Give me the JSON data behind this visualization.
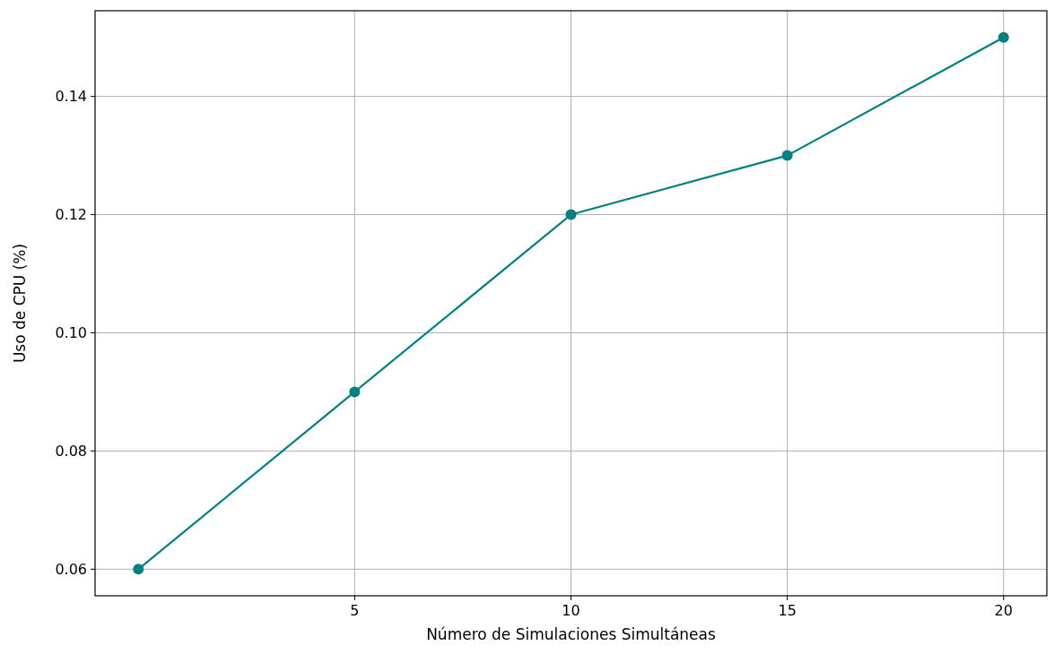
{
  "chart_data": {
    "type": "line",
    "xlabel": "Número de Simulaciones Simultáneas",
    "ylabel": "Uso de CPU (%)",
    "x": [
      0,
      5,
      10,
      15,
      20
    ],
    "series": [
      {
        "color": "#008080",
        "values": [
          0.06,
          0.09,
          0.12,
          0.13,
          0.15
        ]
      }
    ],
    "xlim": [
      -1,
      21
    ],
    "xticks": [
      5,
      10,
      15,
      20
    ],
    "ylim": [
      0.0555,
      0.1545
    ],
    "yticks": [
      {
        "value": 0.06,
        "label": "0.06"
      },
      {
        "value": 0.08,
        "label": "0.08"
      },
      {
        "value": 0.1,
        "label": "0.10"
      },
      {
        "value": 0.12,
        "label": "0.12"
      },
      {
        "value": 0.14,
        "label": "0.14"
      }
    ],
    "grid": true,
    "marker": "circle",
    "line_style": "solid"
  }
}
